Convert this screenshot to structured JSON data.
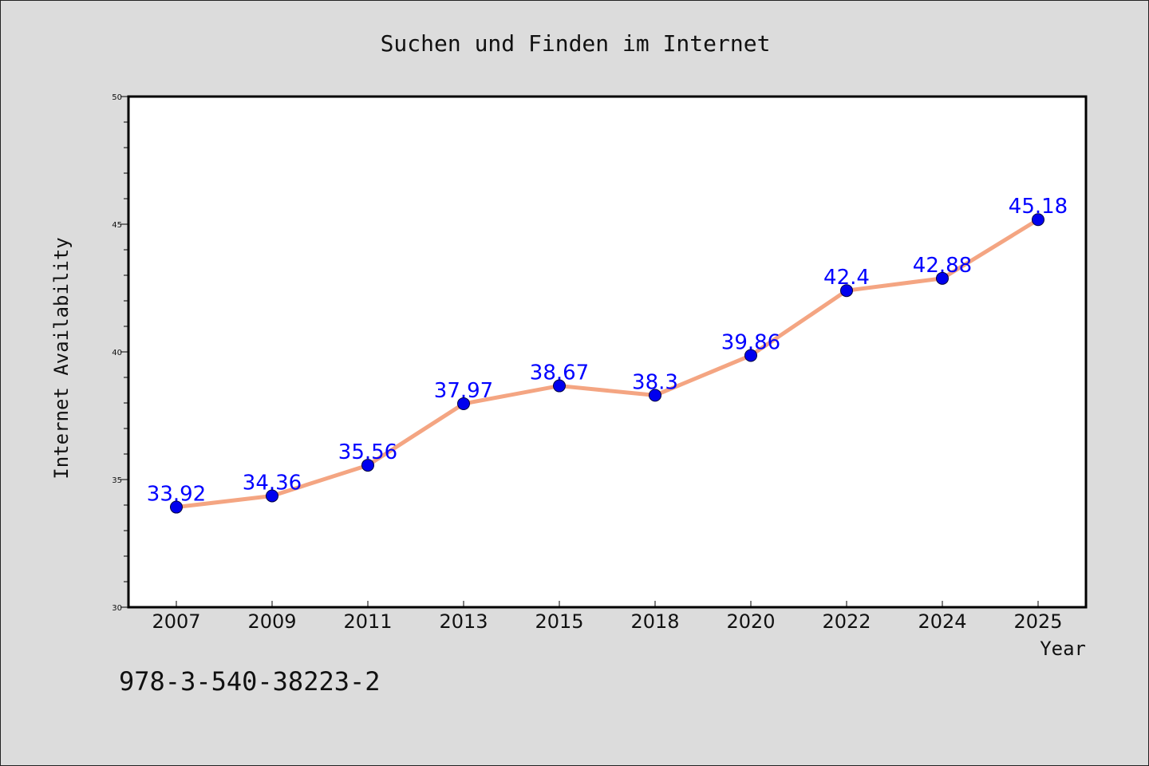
{
  "chart_data": {
    "type": "line",
    "title": "Suchen und Finden im Internet",
    "xlabel": "Year",
    "ylabel": "Internet Availability",
    "categories": [
      "2007",
      "2009",
      "2011",
      "2013",
      "2015",
      "2018",
      "2020",
      "2022",
      "2024",
      "2025"
    ],
    "series": [
      {
        "values": [
          33.92,
          34.36,
          35.56,
          37.97,
          38.67,
          38.3,
          39.86,
          42.4,
          42.88,
          45.18
        ],
        "labels": [
          "33.92",
          "34.36",
          "35.56",
          "37.97",
          "38.67",
          "38.3",
          "39.86",
          "42.4",
          "42.88",
          "45.18"
        ]
      }
    ],
    "ylim": [
      30,
      50
    ],
    "yticks": [
      "30",
      "35",
      "40",
      "45",
      "50"
    ],
    "grid": false,
    "line_color": "#f4a582",
    "marker_color": "#0000ee",
    "label_color": "#0000ff"
  },
  "footer": {
    "isbn": "978-3-540-38223-2"
  }
}
